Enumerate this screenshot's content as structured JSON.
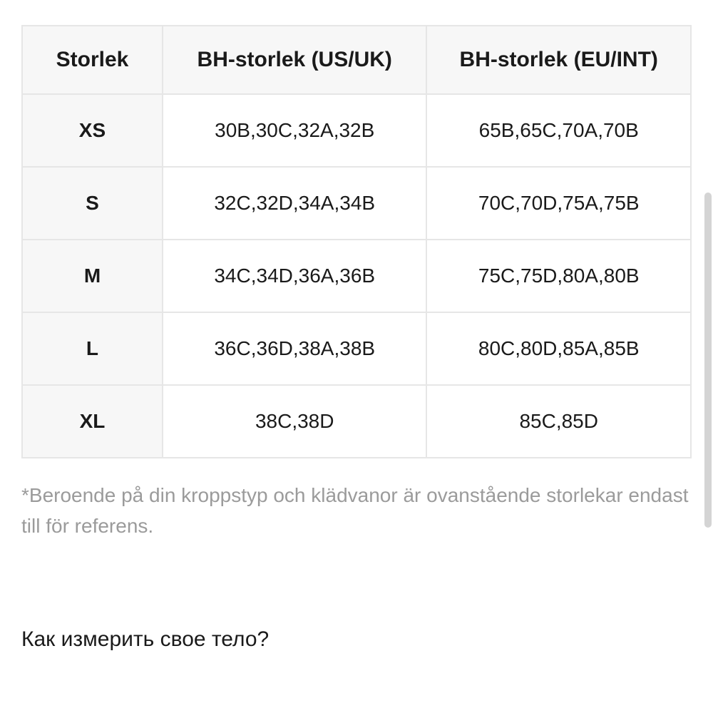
{
  "table": {
    "columns": [
      "Storlek",
      "BH-storlek (US/UK)",
      "BH-storlek (EU/INT)"
    ],
    "rows": [
      [
        "XS",
        "30B,30C,32A,32B",
        "65B,65C,70A,70B"
      ],
      [
        "S",
        "32C,32D,34A,34B",
        "70C,70D,75A,75B"
      ],
      [
        "M",
        "34C,34D,36A,36B",
        "75C,75D,80A,80B"
      ],
      [
        "L",
        "36C,36D,38A,38B",
        "80C,80D,85A,85B"
      ],
      [
        "XL",
        "38C,38D",
        "85C,85D"
      ]
    ]
  },
  "footnote": "*Beroende på din kroppstyp och klädvanor är ovanstående storlekar endast till för referens.",
  "heading": "Как измерить свое тело?"
}
